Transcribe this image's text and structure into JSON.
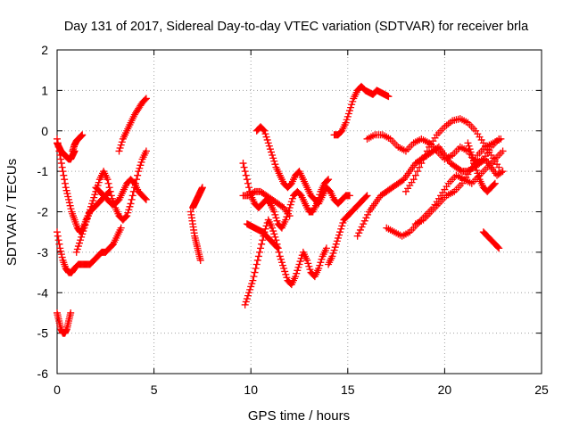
{
  "chart_data": {
    "type": "scatter",
    "title": "Day 131 of 2017, Sidereal Day-to-day VTEC variation (SDTVAR) for receiver brla",
    "xlabel": "GPS time / hours",
    "ylabel": "SDTVAR / TECUs",
    "xlim": [
      0,
      25
    ],
    "ylim": [
      -6,
      2
    ],
    "x_ticks": [
      0,
      5,
      10,
      15,
      20,
      25
    ],
    "y_ticks": [
      -6,
      -5,
      -4,
      -3,
      -2,
      -1,
      0,
      1,
      2
    ],
    "grid": true,
    "marker": "+",
    "marker_color": "#ff0000",
    "series": [
      {
        "name": "s1",
        "x": [
          0.0,
          0.1,
          0.2,
          0.3,
          0.4,
          0.5,
          0.6,
          0.7,
          0.8,
          0.9
        ],
        "y": [
          -0.3,
          -0.4,
          -0.5,
          -0.55,
          -0.6,
          -0.65,
          -0.7,
          -0.7,
          -0.6,
          -0.5
        ]
      },
      {
        "name": "s2",
        "x": [
          0.0,
          0.15,
          0.3,
          0.45,
          0.6,
          0.75,
          0.9,
          1.05,
          1.2,
          1.35,
          1.5,
          1.7,
          1.9,
          2.1,
          2.3,
          2.5,
          2.7
        ],
        "y": [
          -0.2,
          -0.6,
          -1.0,
          -1.4,
          -1.7,
          -2.0,
          -2.2,
          -2.4,
          -2.5,
          -2.4,
          -2.2,
          -2.0,
          -1.9,
          -1.8,
          -1.7,
          -1.6,
          -1.5
        ]
      },
      {
        "name": "s3",
        "x": [
          0.0,
          0.15,
          0.3,
          0.45,
          0.6,
          0.75,
          0.9,
          1.1,
          1.3,
          1.5,
          1.7,
          1.9,
          2.1,
          2.3,
          2.5,
          2.7,
          2.9,
          3.1,
          3.3
        ],
        "y": [
          -2.5,
          -2.9,
          -3.2,
          -3.4,
          -3.5,
          -3.5,
          -3.4,
          -3.3,
          -3.3,
          -3.3,
          -3.3,
          -3.2,
          -3.1,
          -3.0,
          -3.0,
          -2.9,
          -2.8,
          -2.6,
          -2.4
        ]
      },
      {
        "name": "s4",
        "x": [
          0.0,
          0.1,
          0.2,
          0.3,
          0.4,
          0.5,
          0.6,
          0.7
        ],
        "y": [
          -4.5,
          -4.7,
          -4.9,
          -5.0,
          -5.0,
          -4.9,
          -4.7,
          -4.5
        ]
      },
      {
        "name": "s5",
        "x": [
          0.8,
          0.9,
          1.0,
          1.1,
          1.2,
          1.3
        ],
        "y": [
          -0.5,
          -0.35,
          -0.25,
          -0.2,
          -0.15,
          -0.1
        ]
      },
      {
        "name": "s6",
        "x": [
          1.0,
          1.2,
          1.4,
          1.6,
          1.8,
          2.0,
          2.2,
          2.4,
          2.6,
          2.8,
          3.0,
          3.2,
          3.4,
          3.6,
          3.8,
          4.0,
          4.2,
          4.4,
          4.6
        ],
        "y": [
          -3.0,
          -2.7,
          -2.4,
          -2.1,
          -1.8,
          -1.5,
          -1.2,
          -1.0,
          -1.2,
          -1.6,
          -1.9,
          -2.1,
          -2.2,
          -2.1,
          -1.8,
          -1.4,
          -1.0,
          -0.7,
          -0.5
        ]
      },
      {
        "name": "s7",
        "x": [
          2.0,
          2.2,
          2.4,
          2.6,
          2.8,
          3.0,
          3.2,
          3.4,
          3.6,
          3.8,
          4.0,
          4.2,
          4.4,
          4.6
        ],
        "y": [
          -1.4,
          -1.5,
          -1.6,
          -1.7,
          -1.8,
          -1.8,
          -1.7,
          -1.5,
          -1.3,
          -1.2,
          -1.3,
          -1.5,
          -1.6,
          -1.7
        ]
      },
      {
        "name": "s8",
        "x": [
          3.2,
          3.4,
          3.6,
          3.8,
          4.0,
          4.2,
          4.4,
          4.6
        ],
        "y": [
          -0.5,
          -0.2,
          0.0,
          0.2,
          0.4,
          0.55,
          0.7,
          0.8
        ]
      },
      {
        "name": "s9",
        "x": [
          6.9,
          7.0,
          7.1,
          7.2,
          7.3,
          7.4
        ],
        "y": [
          -2.0,
          -2.3,
          -2.6,
          -2.8,
          -3.0,
          -3.2
        ]
      },
      {
        "name": "s10",
        "x": [
          7.0,
          7.1,
          7.2,
          7.3,
          7.4,
          7.5
        ],
        "y": [
          -1.9,
          -1.8,
          -1.7,
          -1.6,
          -1.5,
          -1.4
        ]
      },
      {
        "name": "s11",
        "x": [
          9.7,
          9.9,
          10.1,
          10.3,
          10.5,
          10.7,
          10.9,
          11.1,
          11.3,
          11.5,
          11.7,
          11.9,
          12.1,
          12.3,
          12.5,
          12.7,
          12.9,
          13.1,
          13.3,
          13.5,
          13.7,
          13.9
        ],
        "y": [
          -4.3,
          -4.0,
          -3.7,
          -3.3,
          -2.9,
          -2.5,
          -2.2,
          -2.4,
          -2.7,
          -3.1,
          -3.4,
          -3.7,
          -3.8,
          -3.6,
          -3.3,
          -3.0,
          -3.2,
          -3.5,
          -3.6,
          -3.4,
          -3.1,
          -2.9
        ]
      },
      {
        "name": "s12",
        "x": [
          9.6,
          9.8,
          10.0,
          10.2,
          10.4,
          10.6,
          10.8,
          11.0,
          11.2,
          11.4,
          11.6,
          11.8,
          12.0,
          12.2,
          12.4,
          12.6,
          12.8,
          13.0,
          13.2,
          13.4,
          13.6,
          13.8,
          14.0
        ],
        "y": [
          -0.8,
          -1.2,
          -1.6,
          -1.8,
          -1.9,
          -1.8,
          -1.7,
          -1.8,
          -2.0,
          -2.3,
          -2.4,
          -2.2,
          -1.9,
          -1.6,
          -1.5,
          -1.6,
          -1.8,
          -2.0,
          -2.0,
          -1.8,
          -1.5,
          -1.3,
          -1.2
        ]
      },
      {
        "name": "s13",
        "x": [
          10.3,
          10.5,
          10.7,
          10.9,
          11.1,
          11.3,
          11.5,
          11.7,
          11.9,
          12.1,
          12.3,
          12.5,
          12.7,
          12.9,
          13.1,
          13.3,
          13.5,
          13.7,
          13.9,
          14.1,
          14.3,
          14.5,
          14.7,
          14.9,
          15.1
        ],
        "y": [
          0.0,
          0.1,
          0.0,
          -0.3,
          -0.6,
          -0.9,
          -1.1,
          -1.3,
          -1.4,
          -1.3,
          -1.1,
          -1.0,
          -1.2,
          -1.4,
          -1.6,
          -1.7,
          -1.8,
          -1.6,
          -1.4,
          -1.5,
          -1.7,
          -1.8,
          -1.7,
          -1.6,
          -1.6
        ]
      },
      {
        "name": "s14",
        "x": [
          9.6,
          9.9,
          10.2,
          10.5,
          10.8,
          11.1,
          11.4,
          11.7,
          12.0
        ],
        "y": [
          -1.6,
          -1.6,
          -1.5,
          -1.5,
          -1.6,
          -1.7,
          -1.8,
          -1.9,
          -2.1
        ]
      },
      {
        "name": "s15",
        "x": [
          9.8,
          10.0,
          10.2,
          10.4,
          10.6,
          10.8,
          11.0,
          11.2,
          11.4
        ],
        "y": [
          -2.3,
          -2.35,
          -2.4,
          -2.45,
          -2.5,
          -2.6,
          -2.7,
          -2.8,
          -2.9
        ]
      },
      {
        "name": "s16",
        "x": [
          14.0,
          14.2,
          14.4,
          14.6,
          14.8,
          15.0,
          15.2,
          15.4,
          15.6,
          15.8,
          16.0
        ],
        "y": [
          -3.3,
          -3.1,
          -2.8,
          -2.5,
          -2.2,
          -2.1,
          -2.0,
          -1.9,
          -1.8,
          -1.7,
          -1.6
        ]
      },
      {
        "name": "s17",
        "x": [
          14.3,
          14.5,
          14.7,
          14.9,
          15.1,
          15.3,
          15.5,
          15.7,
          15.9,
          16.1,
          16.3,
          16.5,
          16.7,
          16.9,
          17.1
        ],
        "y": [
          -0.1,
          -0.1,
          0.0,
          0.2,
          0.5,
          0.8,
          1.0,
          1.1,
          1.0,
          0.95,
          0.9,
          1.0,
          0.95,
          0.9,
          0.85
        ]
      },
      {
        "name": "s18",
        "x": [
          15.5,
          15.8,
          16.1,
          16.4,
          16.7,
          17.0,
          17.3,
          17.6,
          17.9,
          18.2,
          18.5,
          18.8,
          19.1,
          19.4,
          19.7,
          20.0,
          20.3,
          20.6,
          20.9,
          21.2,
          21.5,
          21.8,
          22.1,
          22.4,
          22.7,
          23.0
        ],
        "y": [
          -2.6,
          -2.3,
          -2.0,
          -1.8,
          -1.6,
          -1.5,
          -1.4,
          -1.3,
          -1.2,
          -1.0,
          -0.8,
          -0.7,
          -0.6,
          -0.5,
          -0.4,
          -0.6,
          -0.8,
          -0.9,
          -1.0,
          -1.0,
          -0.9,
          -0.8,
          -0.7,
          -0.9,
          -1.1,
          -1.0
        ]
      },
      {
        "name": "s19",
        "x": [
          16.0,
          16.4,
          16.8,
          17.2,
          17.6,
          18.0,
          18.4,
          18.8,
          19.2,
          19.6,
          20.0,
          20.4,
          20.8,
          21.2,
          21.6,
          22.0,
          22.4,
          22.8
        ],
        "y": [
          -0.2,
          -0.1,
          -0.1,
          -0.2,
          -0.4,
          -0.5,
          -0.3,
          -0.2,
          -0.3,
          -0.5,
          -0.7,
          -0.6,
          -0.4,
          -0.5,
          -0.8,
          -0.7,
          -0.4,
          -0.2
        ]
      },
      {
        "name": "s20",
        "x": [
          17.0,
          17.4,
          17.8,
          18.2,
          18.6,
          19.0,
          19.4,
          19.8,
          20.2,
          20.6,
          21.0,
          21.4,
          21.8,
          22.2,
          22.6,
          23.0
        ],
        "y": [
          -2.4,
          -2.5,
          -2.6,
          -2.5,
          -2.3,
          -2.1,
          -1.9,
          -1.6,
          -1.3,
          -1.1,
          -1.2,
          -1.3,
          -1.1,
          -0.9,
          -0.7,
          -0.5
        ]
      },
      {
        "name": "s21",
        "x": [
          18.0,
          18.4,
          18.8,
          19.2,
          19.6,
          20.0,
          20.4,
          20.8,
          21.2,
          21.6,
          22.0,
          22.4,
          22.8
        ],
        "y": [
          -1.5,
          -1.2,
          -0.8,
          -0.4,
          -0.1,
          0.1,
          0.25,
          0.3,
          0.2,
          0.0,
          -0.3,
          -0.6,
          -0.9
        ]
      },
      {
        "name": "s22",
        "x": [
          18.5,
          18.9,
          19.3,
          19.7,
          20.1,
          20.5,
          20.9,
          21.3,
          21.7,
          22.1,
          22.5,
          22.9
        ],
        "y": [
          -2.3,
          -2.2,
          -2.0,
          -1.8,
          -1.6,
          -1.5,
          -1.3,
          -1.0,
          -0.6,
          -0.4,
          -0.3,
          -0.2
        ]
      },
      {
        "name": "s23",
        "x": [
          21.2,
          21.4,
          21.6,
          21.8,
          22.0,
          22.2,
          22.4,
          22.6
        ],
        "y": [
          -0.3,
          -0.6,
          -0.9,
          -1.2,
          -1.4,
          -1.5,
          -1.4,
          -1.3
        ]
      },
      {
        "name": "s24",
        "x": [
          22.0,
          22.2,
          22.4,
          22.6,
          22.8
        ],
        "y": [
          -2.5,
          -2.6,
          -2.7,
          -2.8,
          -2.9
        ]
      }
    ]
  }
}
